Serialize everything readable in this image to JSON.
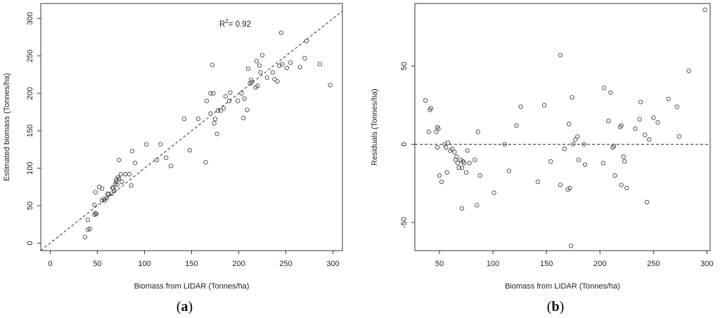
{
  "chart_data": [
    {
      "type": "scatter",
      "panel_label": "(a)",
      "panel_letter": "a",
      "xlabel": "Biomass from LIDAR (Tonnes/ha)",
      "ylabel": "Estimated biomass (Tonnes/ha)",
      "annotation": {
        "text": "R",
        "sup": "2",
        "rest": "= 0.92"
      },
      "xlim": [
        -10,
        310
      ],
      "ylim": [
        -10,
        320
      ],
      "xticks": [
        0,
        50,
        100,
        150,
        200,
        250,
        300
      ],
      "yticks": [
        0,
        50,
        100,
        150,
        200,
        250,
        300
      ],
      "reference_line": "y = x (dashed)",
      "grid": false,
      "points": [
        [
          37,
          8
        ],
        [
          40,
          18
        ],
        [
          42,
          19
        ],
        [
          40,
          31
        ],
        [
          47,
          38
        ],
        [
          48,
          40
        ],
        [
          49,
          39
        ],
        [
          47,
          51
        ],
        [
          48,
          68
        ],
        [
          52,
          75
        ],
        [
          55,
          73
        ],
        [
          55,
          57
        ],
        [
          58,
          57
        ],
        [
          57,
          59
        ],
        [
          60,
          60
        ],
        [
          61,
          66
        ],
        [
          62,
          65
        ],
        [
          65,
          66
        ],
        [
          66,
          74
        ],
        [
          67,
          73
        ],
        [
          68,
          70
        ],
        [
          69,
          79
        ],
        [
          70,
          82
        ],
        [
          70,
          85
        ],
        [
          71,
          78
        ],
        [
          72,
          88
        ],
        [
          73,
          86
        ],
        [
          73,
          111
        ],
        [
          75,
          92
        ],
        [
          76,
          82
        ],
        [
          80,
          92
        ],
        [
          84,
          92
        ],
        [
          86,
          77
        ],
        [
          87,
          123
        ],
        [
          90,
          107
        ],
        [
          102,
          132
        ],
        [
          113,
          111
        ],
        [
          117,
          132
        ],
        [
          123,
          114
        ],
        [
          128,
          103
        ],
        [
          142,
          166
        ],
        [
          148,
          124
        ],
        [
          157,
          166
        ],
        [
          165,
          108
        ],
        [
          166,
          190
        ],
        [
          170,
          173
        ],
        [
          170,
          200
        ],
        [
          172,
          238
        ],
        [
          173,
          200
        ],
        [
          174,
          160
        ],
        [
          175,
          166
        ],
        [
          177,
          146
        ],
        [
          178,
          177
        ],
        [
          181,
          177
        ],
        [
          184,
          180
        ],
        [
          186,
          196
        ],
        [
          190,
          190
        ],
        [
          191,
          201
        ],
        [
          199,
          190
        ],
        [
          203,
          200
        ],
        [
          205,
          167
        ],
        [
          206,
          193
        ],
        [
          209,
          178
        ],
        [
          210,
          233
        ],
        [
          212,
          213
        ],
        [
          213,
          218
        ],
        [
          214,
          215
        ],
        [
          218,
          208
        ],
        [
          219,
          243
        ],
        [
          220,
          210
        ],
        [
          222,
          237
        ],
        [
          223,
          228
        ],
        [
          225,
          251
        ],
        [
          230,
          221
        ],
        [
          236,
          228
        ],
        [
          238,
          219
        ],
        [
          241,
          216
        ],
        [
          243,
          237
        ],
        [
          245,
          281
        ],
        [
          246,
          239
        ],
        [
          251,
          234
        ],
        [
          255,
          241
        ],
        [
          265,
          235
        ],
        [
          270,
          247
        ],
        [
          272,
          270
        ],
        [
          286,
          239
        ],
        [
          297,
          211
        ]
      ]
    },
    {
      "type": "scatter",
      "panel_label": "(b)",
      "panel_letter": "b",
      "xlabel": "Biomass from LIDAR (Tonnes/ha)",
      "ylabel": "Residuals (Tonnes/ha)",
      "xlim": [
        27,
        303
      ],
      "ylim": [
        -68,
        90
      ],
      "xticks": [
        50,
        100,
        150,
        200,
        250,
        300
      ],
      "yticks": [
        -50,
        0,
        50
      ],
      "reference_line": "y = 0 (dashed)",
      "grid": false,
      "points": [
        [
          37,
          28
        ],
        [
          40,
          8
        ],
        [
          41,
          22
        ],
        [
          42,
          23
        ],
        [
          47,
          8
        ],
        [
          48,
          11
        ],
        [
          48,
          -2
        ],
        [
          49,
          10
        ],
        [
          50,
          -20
        ],
        [
          52,
          -24
        ],
        [
          55,
          0
        ],
        [
          56,
          -2
        ],
        [
          57,
          -18
        ],
        [
          58,
          1
        ],
        [
          60,
          -4
        ],
        [
          62,
          -3
        ],
        [
          64,
          -5
        ],
        [
          65,
          -10
        ],
        [
          66,
          -8
        ],
        [
          67,
          -12
        ],
        [
          68,
          -15
        ],
        [
          70,
          -10
        ],
        [
          71,
          -41
        ],
        [
          71,
          -15
        ],
        [
          72,
          -11
        ],
        [
          73,
          -12
        ],
        [
          75,
          -18
        ],
        [
          76,
          -4
        ],
        [
          78,
          -12
        ],
        [
          83,
          -10
        ],
        [
          85,
          -39
        ],
        [
          86,
          8
        ],
        [
          88,
          -20
        ],
        [
          101,
          -31
        ],
        [
          111,
          0
        ],
        [
          115,
          -17
        ],
        [
          122,
          12
        ],
        [
          126,
          24
        ],
        [
          142,
          -24
        ],
        [
          148,
          25
        ],
        [
          154,
          -11
        ],
        [
          163,
          57
        ],
        [
          163,
          -26
        ],
        [
          167,
          -3
        ],
        [
          170,
          -29
        ],
        [
          171,
          13
        ],
        [
          172,
          -28
        ],
        [
          173,
          -65
        ],
        [
          174,
          30
        ],
        [
          175,
          0
        ],
        [
          177,
          3
        ],
        [
          179,
          5
        ],
        [
          180,
          -10
        ],
        [
          185,
          0
        ],
        [
          186,
          -13
        ],
        [
          203,
          -12
        ],
        [
          204,
          36
        ],
        [
          208,
          15
        ],
        [
          210,
          33
        ],
        [
          212,
          -2
        ],
        [
          213,
          -1
        ],
        [
          214,
          -20
        ],
        [
          219,
          11
        ],
        [
          220,
          -26
        ],
        [
          220,
          12
        ],
        [
          222,
          -8
        ],
        [
          223,
          -11
        ],
        [
          225,
          -28
        ],
        [
          233,
          10
        ],
        [
          237,
          16
        ],
        [
          238,
          27
        ],
        [
          242,
          6
        ],
        [
          244,
          -37
        ],
        [
          246,
          3
        ],
        [
          250,
          17
        ],
        [
          254,
          14
        ],
        [
          264,
          29
        ],
        [
          272,
          24
        ],
        [
          274,
          5
        ],
        [
          283,
          47
        ],
        [
          298,
          86
        ]
      ]
    }
  ]
}
